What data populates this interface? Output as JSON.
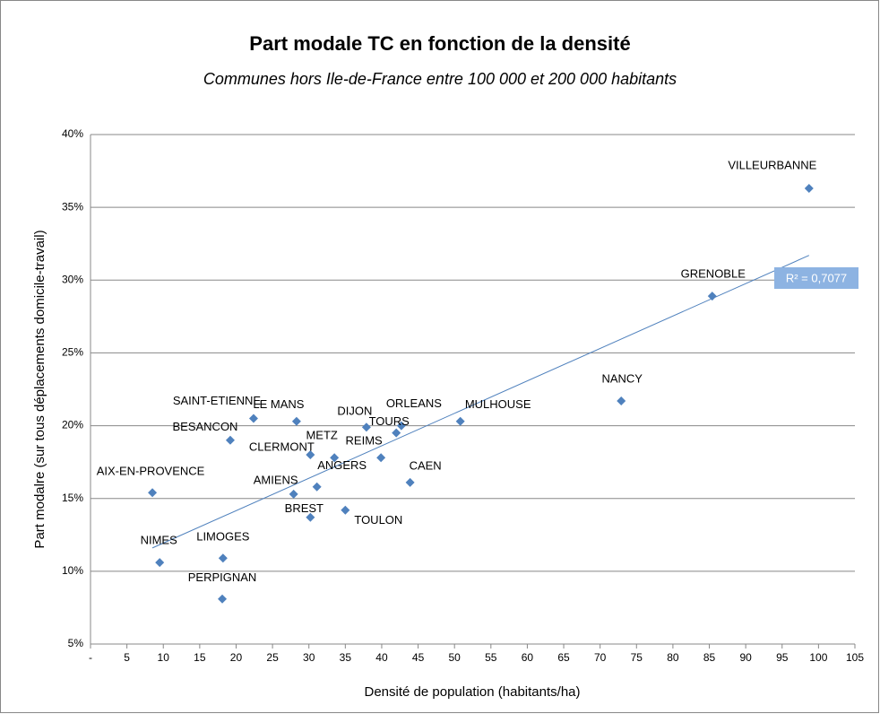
{
  "chart_data": {
    "type": "scatter",
    "title": "Part modale TC  en fonction de la densité",
    "subtitle": "Communes hors Ile-de-France  entre 100 000 et 200 000 habitants",
    "xlabel": "Densité de population (habitants/ha)",
    "ylabel": "Part modalre (sur tous déplacements domicile-travail)",
    "labels": [
      "VILLEURBANNE",
      "GRENOBLE",
      "NANCY",
      "MULHOUSE",
      "ORLEANS",
      "TOURS",
      "DIJON",
      "REIMS",
      "CAEN",
      "TOULON",
      "ANGERS",
      "METZ",
      "CLERMONT",
      "LE MANS",
      "SAINT-ETIENNE",
      "BESANCON",
      "AMIENS",
      "BREST",
      "AIX-EN-PROVENCE",
      "NIMES",
      "LIMOGES",
      "PERPIGNAN"
    ],
    "x": [
      98.7,
      85.4,
      72.9,
      50.8,
      42.7,
      42.0,
      37.9,
      39.9,
      43.9,
      35.0,
      31.1,
      33.5,
      30.2,
      28.3,
      22.4,
      19.2,
      27.9,
      30.2,
      8.5,
      9.5,
      18.2,
      18.1
    ],
    "values": [
      36.3,
      28.9,
      21.7,
      20.3,
      20.0,
      19.5,
      19.9,
      17.8,
      16.1,
      14.2,
      15.8,
      17.8,
      18.0,
      20.3,
      20.5,
      19.0,
      15.3,
      13.7,
      15.4,
      10.6,
      10.9,
      8.1
    ],
    "color": "#4f81bd",
    "trendline": {
      "x": [
        8.5,
        98.7
      ],
      "values": [
        11.6,
        31.7
      ],
      "label": "R² = 0,7077",
      "color": "#4f81bd"
    },
    "xlim": [
      0,
      105
    ],
    "xticks": [
      {
        "value": 0,
        "label": "-"
      },
      5,
      10,
      15,
      20,
      25,
      30,
      35,
      40,
      45,
      50,
      55,
      60,
      65,
      70,
      75,
      80,
      85,
      90,
      95,
      100,
      105
    ],
    "ylim": [
      5,
      40
    ],
    "yticks": [
      {
        "value": 5,
        "label": "5%"
      },
      {
        "value": 10,
        "label": "10%"
      },
      {
        "value": 15,
        "label": "15%"
      },
      {
        "value": 20,
        "label": "20%"
      },
      {
        "value": 25,
        "label": "25%"
      },
      {
        "value": 30,
        "label": "30%"
      },
      {
        "value": 35,
        "label": "35%"
      },
      {
        "value": 40,
        "label": "40%"
      }
    ],
    "grid": true
  }
}
